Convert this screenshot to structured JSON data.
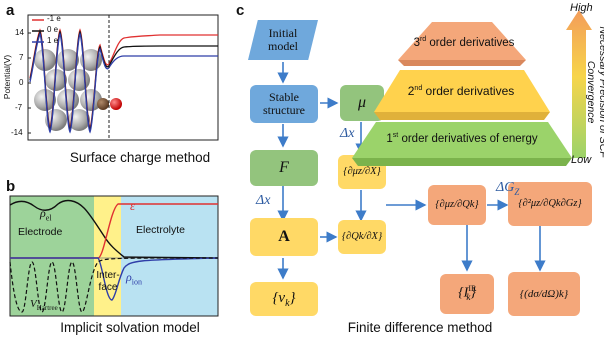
{
  "panel_a": {
    "label": "a",
    "ylabel": "Potential(V)",
    "yticks": [
      "14",
      "7",
      "0",
      "-7",
      "-14"
    ],
    "legend": [
      {
        "name": "-1 e",
        "color": "#e03131"
      },
      {
        "name": "0 e",
        "color": "#111111"
      },
      {
        "name": "1 e",
        "color": "#2f3ea8"
      }
    ],
    "caption": "Surface charge method"
  },
  "panel_b": {
    "label": "b",
    "regions": [
      "Electrode",
      "Inter-face",
      "Electrolyte"
    ],
    "rho_el": "ρ",
    "rho_el_sub": "el",
    "epsilon": "ε",
    "rho_ion": "ρ",
    "rho_ion_sub": "ion",
    "v_hartree": "V",
    "v_hartree_sub": "Hartree",
    "caption": "Implicit solvation model"
  },
  "panel_c": {
    "label": "c",
    "boxes": {
      "initial": "Initial model",
      "stable": "Stable structure",
      "mu": "μ",
      "F": "F",
      "A": "A",
      "nu": "{ν",
      "nu_sub": "k",
      "nu_close": "}",
      "dmu_dX": "{∂μz/∂X}",
      "dQ_dX": "{∂Qk/∂X}",
      "dmu_dQ": "{∂μz/∂Qk}",
      "d2mu": "{∂²μz/∂Qk∂Gz}",
      "IR": "{I",
      "IR_sup": "IR",
      "IR_sub": "k",
      "IR_close": "}",
      "dsigma": "{(dσ/dΩ)k}"
    },
    "delta_x_1": "Δx",
    "delta_x_2": "Δx",
    "delta_G": "ΔG",
    "delta_G_sub": "Z",
    "pyramid": [
      {
        "order": "3",
        "sup": "rd",
        "text": " order derivatives"
      },
      {
        "order": "2",
        "sup": "nd",
        "text": " order derivatives"
      },
      {
        "order": "1",
        "sup": "st",
        "text": " order derivatives of energy"
      }
    ],
    "precision_label": "Necessary Precision of SCF Convergence",
    "high": "High",
    "low": "Low",
    "caption": "Finite difference method"
  },
  "colors": {
    "blue_box": "#6fa8dc",
    "green_box": "#93c47d",
    "yellow_box": "#ffd966",
    "orange_box": "#f4a77a",
    "arrow": "#3d7cc9"
  }
}
